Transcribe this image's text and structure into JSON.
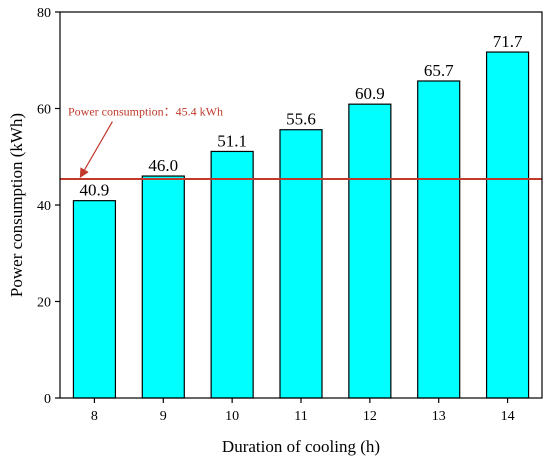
{
  "chart_data": {
    "type": "bar",
    "categories": [
      "8",
      "9",
      "10",
      "11",
      "12",
      "13",
      "14"
    ],
    "values": [
      40.9,
      46.0,
      51.1,
      55.6,
      60.9,
      65.7,
      71.7
    ],
    "value_labels": [
      "40.9",
      "46.0",
      "51.1",
      "55.6",
      "60.9",
      "65.7",
      "71.7"
    ],
    "xlabel": "Duration of cooling (h)",
    "ylabel": "Power consumption (kWh)",
    "ylim": [
      0,
      80
    ],
    "yticks": [
      0,
      20,
      40,
      60,
      80
    ],
    "grid": false,
    "bar_color": "#00ffff",
    "bar_edge_color": "#000000",
    "reference_line": {
      "value": 45.4,
      "label": "Power consumption：45.4 kWh",
      "color": "#c0392b"
    },
    "annotation_arrow": {
      "points_to_category": "8",
      "color": "#c0392b"
    }
  }
}
